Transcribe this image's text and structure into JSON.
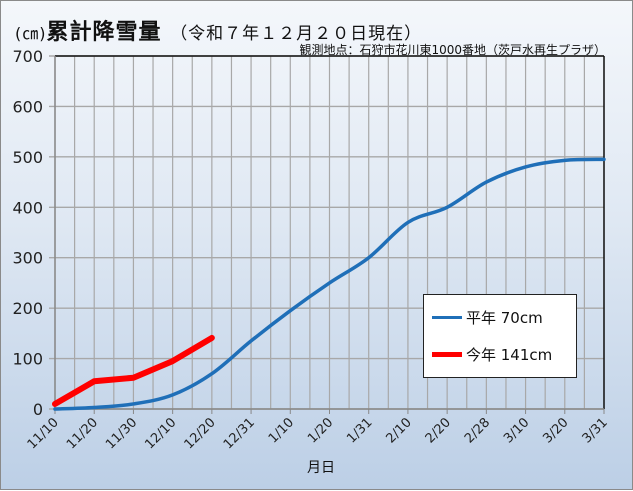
{
  "title": {
    "unit": "(㎝)",
    "main": "累計降雪量",
    "date": "（令和７年１２月２０日現在）"
  },
  "subtitle": "観測地点：石狩市花川東1000番地（茨戸水再生プラザ）",
  "colors": {
    "normal": "#1f6fb8",
    "this_year": "#ff0000",
    "grid": "#a8a8a8"
  },
  "legend": {
    "normal": "平年 70cm",
    "this_year": "今年 141cm"
  },
  "chart_data": {
    "type": "line",
    "title": "累計降雪量（令和７年１２月２０日現在）",
    "subtitle": "観測地点：石狩市花川東1000番地（茨戸水再生プラザ）",
    "xlabel": "月日",
    "ylabel": "(㎝)",
    "ylim": [
      0,
      700
    ],
    "yticks": [
      0,
      100,
      200,
      300,
      400,
      500,
      600,
      700
    ],
    "grid": true,
    "legend_position": "lower-right inside",
    "categories": [
      "11/10",
      "11/20",
      "11/30",
      "12/10",
      "12/20",
      "12/31",
      "1/10",
      "1/20",
      "1/31",
      "2/10",
      "2/20",
      "2/28",
      "3/10",
      "3/20",
      "3/31"
    ],
    "series": [
      {
        "name": "平年 70cm",
        "color": "#1f6fb8",
        "values": [
          0,
          3,
          10,
          28,
          70,
          135,
          195,
          250,
          300,
          370,
          400,
          450,
          480,
          493,
          495
        ]
      },
      {
        "name": "今年 141cm",
        "color": "#ff0000",
        "values": [
          10,
          55,
          62,
          95,
          141,
          null,
          null,
          null,
          null,
          null,
          null,
          null,
          null,
          null,
          null
        ]
      }
    ]
  }
}
